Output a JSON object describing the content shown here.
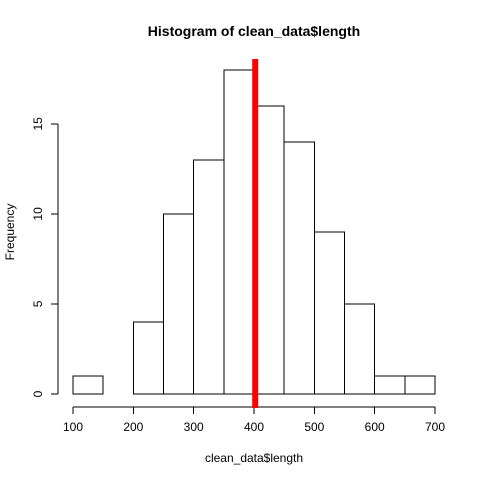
{
  "chart_data": {
    "type": "bar",
    "title": "Histogram of clean_data$length",
    "xlabel": "clean_data$length",
    "ylabel": "Frequency",
    "bin_edges": [
      100,
      150,
      200,
      250,
      300,
      350,
      400,
      450,
      500,
      550,
      600,
      650,
      700
    ],
    "values": [
      1,
      0,
      4,
      10,
      13,
      18,
      16,
      14,
      9,
      5,
      1,
      1
    ],
    "xlim": [
      100,
      700
    ],
    "ylim": [
      0,
      18
    ],
    "x_ticks": [
      100,
      200,
      300,
      400,
      500,
      600,
      700
    ],
    "y_ticks": [
      0,
      5,
      10,
      15
    ],
    "reference_line": {
      "x": 402,
      "color": "#ff0000"
    },
    "grid": false,
    "legend": "none"
  }
}
